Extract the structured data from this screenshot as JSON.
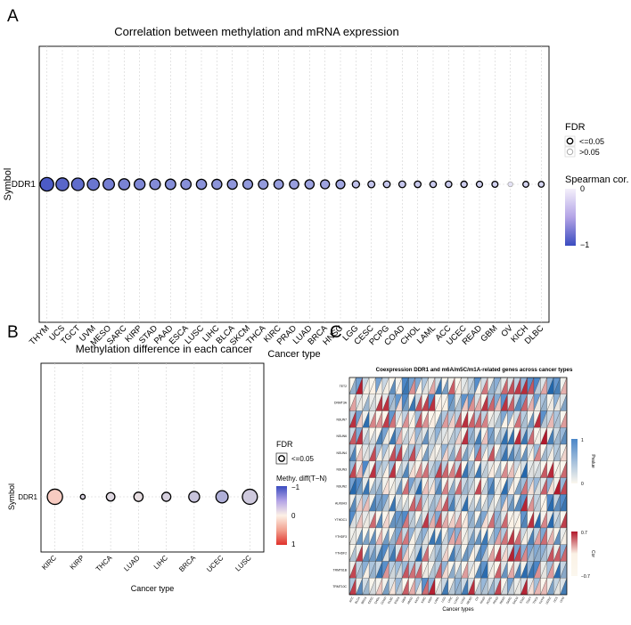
{
  "panels": {
    "a": {
      "letter": "A"
    },
    "b": {
      "letter": "B"
    },
    "c": {
      "letter": "C"
    }
  },
  "colors": {
    "cor_low": "#3b4cc0",
    "cor_high": "#f4f0fb",
    "diff_neg": "#3b4cc0",
    "diff_zero": "#fdf1e6",
    "diff_pos": "#e0312b",
    "heat_pos": "#b2182b",
    "heat_neg": "#2166ac",
    "heat_mid": "#fbf2e6"
  },
  "chart_data": [
    {
      "panel": "A",
      "type": "scatter",
      "title": "Correlation between methylation and mRNA expression",
      "xlabel": "Cancer type",
      "ylabel": "Symbol",
      "categories": [
        "THYM",
        "UCS",
        "TGCT",
        "UVM",
        "MESO",
        "SARC",
        "KIRP",
        "STAD",
        "PAAD",
        "ESCA",
        "LUSC",
        "LIHC",
        "BLCA",
        "SKCM",
        "THCA",
        "KIRC",
        "PRAD",
        "LUAD",
        "BRCA",
        "HNSC",
        "LGG",
        "CESC",
        "PCPG",
        "COAD",
        "CHOL",
        "LAML",
        "ACC",
        "UCEC",
        "READ",
        "GBM",
        "OV",
        "KICH",
        "DLBC"
      ],
      "y_categories": [
        "DDR1"
      ],
      "spearman_cor": [
        -0.68,
        -0.63,
        -0.6,
        -0.56,
        -0.52,
        -0.5,
        -0.48,
        -0.46,
        -0.45,
        -0.44,
        -0.43,
        -0.42,
        -0.41,
        -0.4,
        -0.39,
        -0.38,
        -0.37,
        -0.36,
        -0.35,
        -0.34,
        -0.22,
        -0.2,
        -0.19,
        -0.19,
        -0.18,
        -0.17,
        -0.17,
        -0.16,
        -0.15,
        -0.14,
        -0.06,
        -0.13,
        -0.12
      ],
      "fdr_significant": [
        true,
        true,
        true,
        true,
        true,
        true,
        true,
        true,
        true,
        true,
        true,
        true,
        true,
        true,
        true,
        true,
        true,
        true,
        true,
        true,
        true,
        true,
        true,
        true,
        true,
        true,
        true,
        true,
        true,
        true,
        false,
        true,
        true
      ],
      "legend_fdr": {
        "title": "FDR",
        "items": [
          "<=0.05",
          ">0.05"
        ]
      },
      "legend_color": {
        "title": "Spearman cor.",
        "ticks": [
          "0",
          "−1"
        ],
        "range": [
          -1,
          0
        ]
      },
      "grid": true
    },
    {
      "panel": "B",
      "type": "scatter",
      "title": "Methylation difference in each cancer",
      "xlabel": "Cancer type",
      "ylabel": "Symbol",
      "categories": [
        "KIRC",
        "KIRP",
        "THCA",
        "LUAD",
        "LIHC",
        "BRCA",
        "UCEC",
        "LUSC"
      ],
      "y_categories": [
        "DDR1"
      ],
      "methy_diff": [
        0.05,
        -0.05,
        -0.04,
        -0.03,
        -0.05,
        -0.07,
        -0.1,
        -0.06
      ],
      "fdr_log_size": [
        5.5,
        1.0,
        2.6,
        2.9,
        2.8,
        3.6,
        4.2,
        5.4
      ],
      "legend_fdr": {
        "title": "FDR",
        "items": [
          "<=0.05"
        ]
      },
      "legend_color": {
        "title": "Methy. diff(T−N)",
        "ticks": [
          "−1",
          "0",
          "1"
        ],
        "range": [
          -1,
          1
        ]
      },
      "grid": true
    },
    {
      "panel": "C",
      "type": "heatmap",
      "title": "Coexpression DDR1 and m6A/m5C/m1A-related genes across cancer types",
      "xlabel": "Cancer types",
      "rows": [
        "TET2",
        "DNMT3A",
        "NSUN7",
        "NSUN6",
        "NSUN4",
        "NSUN3",
        "NSUN2",
        "ALKBH3",
        "YTHDC1",
        "YTHDF3",
        "YTHDF2",
        "TRMT61B",
        "TRMT10C"
      ],
      "columns": [
        "ACC",
        "BLCA",
        "BRCA",
        "CESC",
        "CHOL",
        "COAD",
        "DLBC",
        "ESCA",
        "GBM",
        "HNSC",
        "KICH",
        "KIRC",
        "KIRP",
        "LAML",
        "LGG",
        "LIHC",
        "LUAD",
        "LUSC",
        "MESO",
        "OV",
        "PAAD",
        "PCPG",
        "PRAD",
        "READ",
        "SARC",
        "SKCM",
        "STAD",
        "TGCT",
        "THCA",
        "THYM",
        "UCEC",
        "UCS",
        "UVM"
      ],
      "legend_pvalue": {
        "title": "Pvalue",
        "ticks": [
          "1",
          "0"
        ]
      },
      "legend_cor": {
        "title": "Cor",
        "ticks": [
          "0.7",
          "−0.7"
        ],
        "range": [
          -0.7,
          0.7
        ]
      }
    }
  ]
}
